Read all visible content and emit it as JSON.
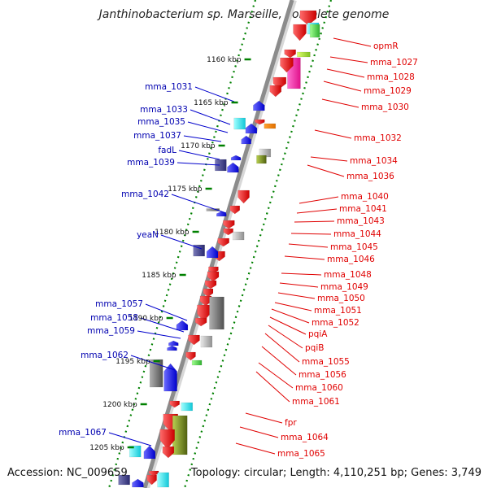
{
  "title": "Janthinobacterium sp. Marseille, complete genome",
  "footer": {
    "accession": "Accession: NC_009659",
    "summary": "Topology: circular; Length: 4,110,251 bp; Genes: 3,749"
  },
  "colors": {
    "forward_label": "#0000b0",
    "reverse_label": "#e00000",
    "backbone": "#8c8c8c",
    "tick": "#008000",
    "leader": "#0000cc",
    "leader_rev": "#e00000"
  },
  "ruler": {
    "unit": "kbp",
    "ticks": [
      "1160 kbp",
      "1165 kbp",
      "1170 kbp",
      "1175 kbp",
      "1180 kbp",
      "1185 kbp",
      "1190 kbp",
      "1195 kbp",
      "1200 kbp",
      "1205 kbp"
    ]
  },
  "forward_labels": [
    "mma_1031",
    "mma_1033",
    "mma_1035",
    "mma_1037",
    "fadL",
    "mma_1039",
    "mma_1042",
    "yeaN",
    "mma_1057",
    "mma_1058",
    "mma_1059",
    "mma_1062",
    "mma_1067"
  ],
  "reverse_labels": [
    "opmR",
    "mma_1027",
    "mma_1028",
    "mma_1029",
    "mma_1030",
    "mma_1032",
    "mma_1034",
    "mma_1036",
    "mma_1040",
    "mma_1041",
    "mma_1043",
    "mma_1044",
    "mma_1045",
    "mma_1046",
    "mma_1048",
    "mma_1049",
    "mma_1050",
    "mma_1051",
    "mma_1052",
    "pqiA",
    "pqiB",
    "mma_1055",
    "mma_1056",
    "mma_1060",
    "mma_1061",
    "fpr",
    "mma_1064",
    "mma_1065"
  ]
}
